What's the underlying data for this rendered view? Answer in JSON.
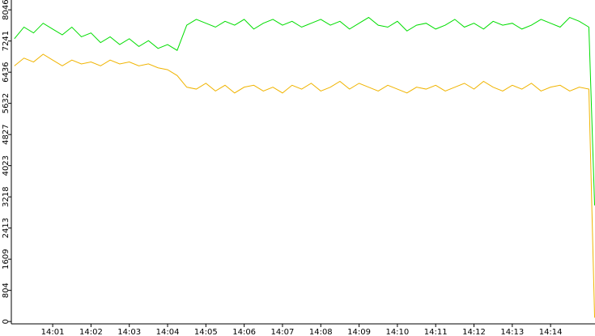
{
  "chart_data": {
    "type": "line",
    "x": [
      0,
      0.25,
      0.5,
      0.75,
      1,
      1.25,
      1.5,
      1.75,
      2,
      2.25,
      2.5,
      2.75,
      3,
      3.25,
      3.5,
      3.75,
      4,
      4.25,
      4.5,
      4.75,
      5,
      5.25,
      5.5,
      5.75,
      6,
      6.25,
      6.5,
      6.75,
      7,
      7.25,
      7.5,
      7.75,
      8,
      8.25,
      8.5,
      8.75,
      9,
      9.25,
      9.5,
      9.75,
      10,
      10.25,
      10.5,
      10.75,
      11,
      11.25,
      11.5,
      11.75,
      12,
      12.25,
      12.5,
      12.75,
      13,
      13.25,
      13.5,
      13.75,
      14,
      14.25,
      14.5,
      14.75,
      15,
      15.15
    ],
    "series": [
      {
        "color": "#00dd00",
        "values": [
          7300,
          7600,
          7450,
          7700,
          7550,
          7400,
          7600,
          7350,
          7450,
          7200,
          7350,
          7150,
          7300,
          7100,
          7250,
          7050,
          7150,
          7000,
          7650,
          7800,
          7700,
          7600,
          7750,
          7650,
          7800,
          7550,
          7700,
          7800,
          7650,
          7750,
          7600,
          7700,
          7800,
          7650,
          7750,
          7550,
          7700,
          7850,
          7650,
          7600,
          7750,
          7500,
          7650,
          7700,
          7550,
          7650,
          7800,
          7600,
          7700,
          7550,
          7750,
          7650,
          7700,
          7550,
          7650,
          7800,
          7700,
          7600,
          7850,
          7750,
          7600,
          3000
        ]
      },
      {
        "color": "#f0b400",
        "values": [
          6600,
          6800,
          6700,
          6900,
          6750,
          6600,
          6750,
          6650,
          6700,
          6600,
          6750,
          6650,
          6700,
          6600,
          6650,
          6550,
          6500,
          6350,
          6050,
          6000,
          6150,
          5950,
          6100,
          5900,
          6050,
          6100,
          5950,
          6050,
          5900,
          6100,
          6000,
          6150,
          5950,
          6050,
          6200,
          6000,
          6150,
          6050,
          5950,
          6100,
          6000,
          5900,
          6050,
          6000,
          6100,
          5950,
          6050,
          6150,
          6000,
          6200,
          6050,
          5950,
          6100,
          6000,
          6150,
          5950,
          6050,
          6100,
          5950,
          6050,
          6000,
          100
        ]
      }
    ],
    "xlim": [
      -0.08,
      15.16
    ],
    "xticks": [
      {
        "value": 1,
        "label": "14:01"
      },
      {
        "value": 2,
        "label": "14:02"
      },
      {
        "value": 3,
        "label": "14:03"
      },
      {
        "value": 4,
        "label": "14:04"
      },
      {
        "value": 5,
        "label": "14:05"
      },
      {
        "value": 6,
        "label": "14:06"
      },
      {
        "value": 7,
        "label": "14:07"
      },
      {
        "value": 8,
        "label": "14:08"
      },
      {
        "value": 9,
        "label": "14:09"
      },
      {
        "value": 10,
        "label": "14:10"
      },
      {
        "value": 11,
        "label": "14:11"
      },
      {
        "value": 12,
        "label": "14:12"
      },
      {
        "value": 13,
        "label": "14:13"
      },
      {
        "value": 14,
        "label": "14:14"
      }
    ],
    "ylim": [
      -60,
      8300
    ],
    "yticks": [
      0,
      804,
      1609,
      2413,
      3218,
      4023,
      4827,
      5632,
      6436,
      7241,
      8046
    ]
  }
}
